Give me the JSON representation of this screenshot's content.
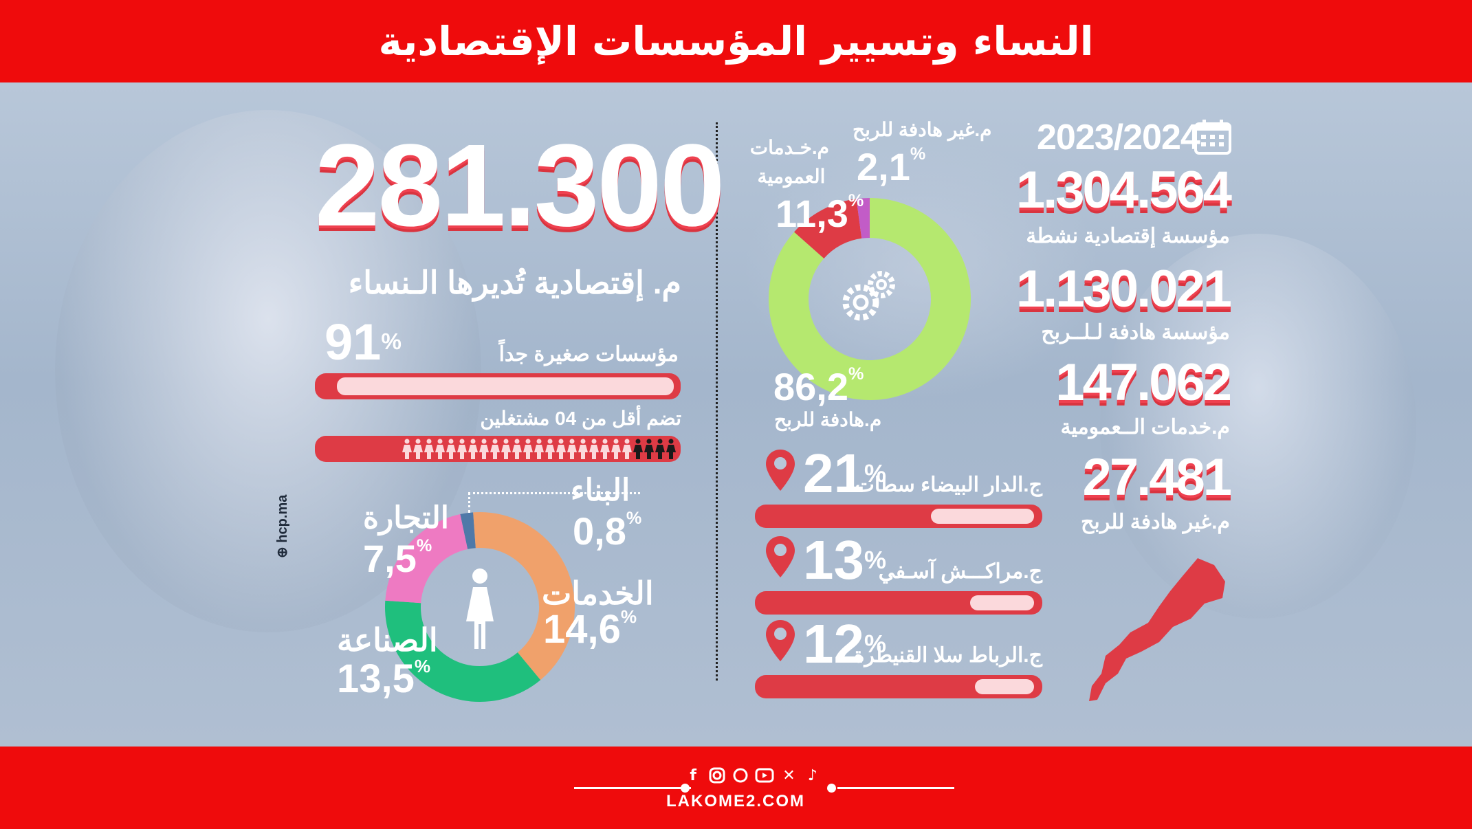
{
  "title": "النساء وتسيير المؤسسات الإقتصادية",
  "colors": {
    "brand_red": "#ef0b0c",
    "bar_red": "#de3b45",
    "bar_light": "#fbd9dc",
    "green": "#b5e86f",
    "orange": "#f0a16b",
    "teal": "#1fbf7d",
    "pink": "#ee7ac2",
    "steel": "#4f79a8",
    "purple": "#c25cc7"
  },
  "left": {
    "big_number": "281.300",
    "subtitle": "م. إقتصادية تُديرها الـنساء",
    "micro_pct": "91",
    "micro_label": "مؤسسات صغيرة جداً",
    "workers_label": "تضم أقل من 04 مشتغلين",
    "people_total": 25,
    "people_dark": 4,
    "source": "hcp.ma"
  },
  "sectors": {
    "items": [
      {
        "name": "البناء",
        "pct": "0,8",
        "value": 0.8,
        "color": "#4f79a8"
      },
      {
        "name": "الخدمات",
        "pct": "14,6",
        "value": 14.6,
        "color": "#f0a16b"
      },
      {
        "name": "الصناعة",
        "pct": "13,5",
        "value": 13.5,
        "color": "#1fbf7d"
      },
      {
        "name": "التجارة",
        "pct": "7,5",
        "value": 7.5,
        "color": "#ee7ac2"
      }
    ]
  },
  "types": {
    "items": [
      {
        "name": "م.هادفة للربح",
        "pct": "86,2",
        "value": 86.2,
        "color": "#b5e86f"
      },
      {
        "name": "م.خـدمات العمومية",
        "pct": "11,3",
        "value": 11.3,
        "color": "#de3b45"
      },
      {
        "name": "م.غير هادفة للربح",
        "pct": "2,1",
        "value": 2.1,
        "color": "#c25cc7"
      }
    ]
  },
  "regions": [
    {
      "name": "ج.الدار البيضاء سطات",
      "pct": "21",
      "value": 21
    },
    {
      "name": "ج.مراكـــش آسـفي",
      "pct": "13",
      "value": 13
    },
    {
      "name": "ج.الرباط سلا القنيطرة",
      "pct": "12",
      "value": 12
    }
  ],
  "stats": {
    "year": "2023/2024",
    "rows": [
      {
        "number": "1.304.564",
        "label": "مؤسسة إقتصادية نشطة"
      },
      {
        "number": "1.130.021",
        "label": "مؤسسة هادفة لـلــربح"
      },
      {
        "number": "147.062",
        "label": "م.خدمات الــعمومية"
      },
      {
        "number": "27.481",
        "label": "م.غير هادفة للربح"
      }
    ]
  },
  "footer": {
    "site": "LAKOME2.COM",
    "icons": [
      "facebook-icon",
      "instagram-icon",
      "whatsapp-icon",
      "youtube-icon",
      "x-icon",
      "tiktok-icon"
    ]
  }
}
